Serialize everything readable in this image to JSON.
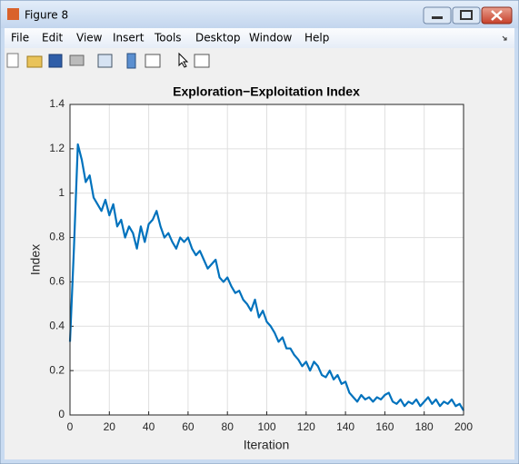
{
  "window": {
    "title": "Figure 8",
    "menu": [
      "File",
      "Edit",
      "View",
      "Insert",
      "Tools",
      "Desktop",
      "Window",
      "Help"
    ]
  },
  "chart_data": {
    "type": "line",
    "title": "Exploration−Exploitation Index",
    "x_label": "Iteration",
    "y_label": "Index",
    "x": [
      0,
      2,
      4,
      6,
      8,
      10,
      12,
      14,
      16,
      18,
      20,
      22,
      24,
      26,
      28,
      30,
      32,
      34,
      36,
      38,
      40,
      42,
      44,
      46,
      48,
      50,
      52,
      54,
      56,
      58,
      60,
      62,
      64,
      66,
      68,
      70,
      72,
      74,
      76,
      78,
      80,
      82,
      84,
      86,
      88,
      90,
      92,
      94,
      96,
      98,
      100,
      102,
      104,
      106,
      108,
      110,
      112,
      114,
      116,
      118,
      120,
      122,
      124,
      126,
      128,
      130,
      132,
      134,
      136,
      138,
      140,
      142,
      144,
      146,
      148,
      150,
      152,
      154,
      156,
      158,
      160,
      162,
      164,
      166,
      168,
      170,
      172,
      174,
      176,
      178,
      180,
      182,
      184,
      186,
      188,
      190,
      192,
      194,
      196,
      198,
      200
    ],
    "values": [
      0.33,
      0.75,
      1.22,
      1.15,
      1.05,
      1.08,
      0.98,
      0.95,
      0.92,
      0.97,
      0.9,
      0.95,
      0.85,
      0.88,
      0.8,
      0.85,
      0.82,
      0.75,
      0.85,
      0.78,
      0.86,
      0.88,
      0.92,
      0.85,
      0.8,
      0.82,
      0.78,
      0.75,
      0.8,
      0.78,
      0.8,
      0.75,
      0.72,
      0.74,
      0.7,
      0.66,
      0.68,
      0.7,
      0.62,
      0.6,
      0.62,
      0.58,
      0.55,
      0.56,
      0.52,
      0.5,
      0.47,
      0.52,
      0.44,
      0.47,
      0.42,
      0.4,
      0.37,
      0.33,
      0.35,
      0.3,
      0.3,
      0.27,
      0.25,
      0.22,
      0.24,
      0.2,
      0.24,
      0.22,
      0.18,
      0.17,
      0.2,
      0.16,
      0.18,
      0.14,
      0.15,
      0.1,
      0.08,
      0.06,
      0.09,
      0.07,
      0.08,
      0.06,
      0.08,
      0.07,
      0.09,
      0.1,
      0.06,
      0.05,
      0.07,
      0.04,
      0.06,
      0.05,
      0.07,
      0.04,
      0.06,
      0.08,
      0.05,
      0.07,
      0.04,
      0.06,
      0.05,
      0.07,
      0.04,
      0.05,
      0.02
    ],
    "color": "#0072bd",
    "xlim": [
      0,
      200
    ],
    "xticks": [
      0,
      20,
      40,
      60,
      80,
      100,
      120,
      140,
      160,
      180,
      200
    ],
    "ylim": [
      0,
      1.4
    ],
    "yticks": [
      0,
      0.2,
      0.4,
      0.6,
      0.8,
      1,
      1.2,
      1.4
    ],
    "grid": true
  }
}
